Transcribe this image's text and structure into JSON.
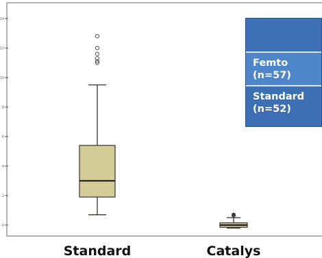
{
  "chart_data": {
    "type": "box",
    "categories": [
      "Standard",
      "Catalys"
    ],
    "ylim": [
      -1,
      14
    ],
    "y_ticks": [
      0,
      2,
      4,
      6,
      8,
      10,
      12,
      14
    ],
    "boxes": [
      {
        "category": "Standard",
        "min": 0.7,
        "q1": 1.9,
        "median": 3.0,
        "q3": 5.4,
        "max": 9.5,
        "outliers": [
          11.0,
          11.1,
          11.3,
          11.6,
          12.0,
          12.8
        ]
      },
      {
        "category": "Catalys",
        "min": -0.2,
        "q1": -0.15,
        "median": 0.0,
        "q3": 0.15,
        "max": 0.5,
        "outliers": [
          0.65,
          0.7
        ]
      }
    ],
    "legend": {
      "placement": "top-right",
      "entries": [
        {
          "line1": "Femto",
          "line2": "(n=57)"
        },
        {
          "line1": "Standard",
          "line2": "(n=52)"
        }
      ]
    },
    "colors": {
      "box_fill": "#d4cc97",
      "box_stroke": "#33332a",
      "frame": "#9a9a9a",
      "legend_bg": "#3f72b8"
    }
  }
}
